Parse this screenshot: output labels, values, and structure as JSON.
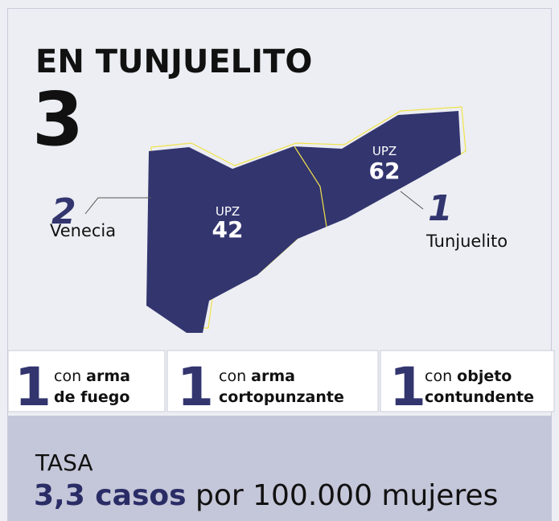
{
  "header": {
    "title": "EN TUNJUELITO",
    "total": "3"
  },
  "regions": [
    {
      "upz": "UPZ",
      "code": "42",
      "count": "2",
      "name": "Venecia"
    },
    {
      "upz": "UPZ",
      "code": "62",
      "count": "1",
      "name": "Tunjuelito"
    }
  ],
  "weapons": [
    {
      "count": "1",
      "prefix": "con",
      "lines": [
        "arma",
        "de fuego"
      ]
    },
    {
      "count": "1",
      "prefix": "con",
      "lines": [
        "arma",
        "cortopunzante"
      ]
    },
    {
      "count": "1",
      "prefix": "con",
      "lines": [
        "objeto",
        "contundente"
      ]
    }
  ],
  "rate": {
    "label": "TASA",
    "value": "3,3 casos",
    "unit": "por 100.000 mujeres"
  }
}
